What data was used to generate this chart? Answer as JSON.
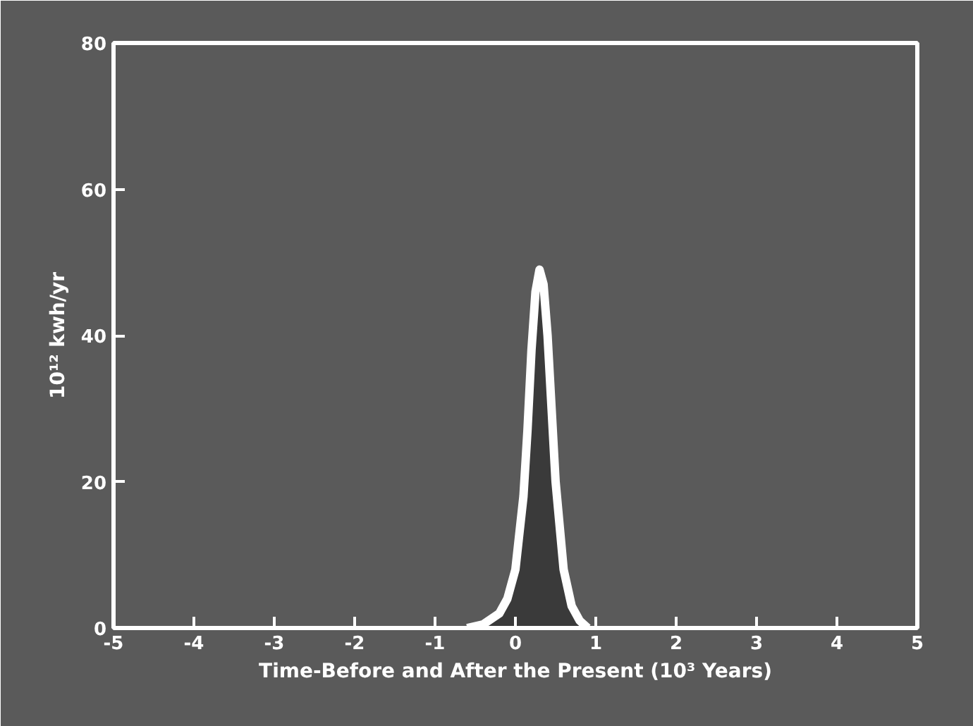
{
  "chart_data": {
    "type": "area",
    "xlabel": "Time-Before and After the Present (10³ Years)",
    "ylabel": "10¹² kwh/yr",
    "x": [
      -0.6,
      -0.4,
      -0.2,
      -0.1,
      0,
      0.1,
      0.15,
      0.2,
      0.25,
      0.3,
      0.35,
      0.4,
      0.45,
      0.5,
      0.6,
      0.7,
      0.8,
      0.9
    ],
    "series": [
      {
        "color": "#3a3a3a",
        "values": [
          0,
          0.5,
          2,
          4,
          8,
          18,
          27,
          38,
          46,
          49,
          47,
          40,
          30,
          20,
          8,
          3,
          1,
          0
        ]
      }
    ],
    "xlim": [
      -5,
      5
    ],
    "xticks": [
      -5,
      -4,
      -3,
      -2,
      -1,
      0,
      1,
      2,
      3,
      4,
      5
    ],
    "ylim": [
      0,
      80
    ],
    "yticks": [
      0,
      20,
      40,
      60,
      80
    ],
    "grid": false
  }
}
